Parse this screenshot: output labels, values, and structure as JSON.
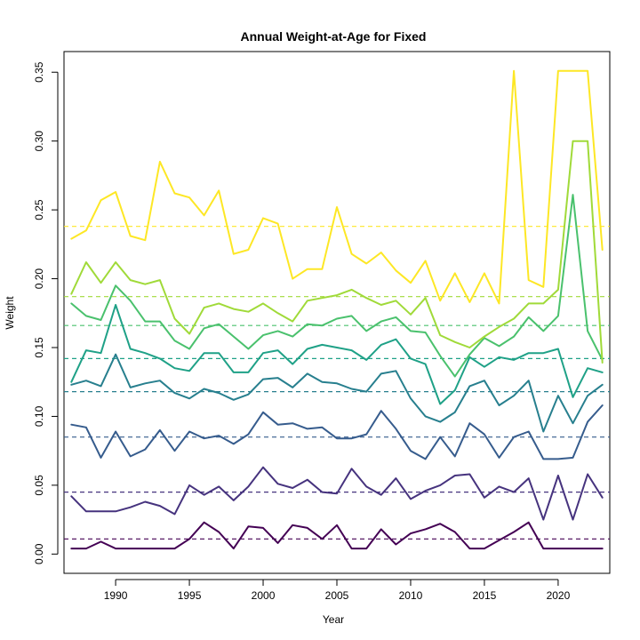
{
  "chart_data": {
    "type": "line",
    "title": "Annual Weight-at-Age for Fixed",
    "xlabel": "Year",
    "ylabel": "Weight",
    "xlim": [
      1986.5,
      2023.5
    ],
    "ylim": [
      -0.014,
      0.365
    ],
    "x_ticks": [
      1990,
      1995,
      2000,
      2005,
      2010,
      2015,
      2020
    ],
    "y_ticks": [
      0.0,
      0.05,
      0.1,
      0.15,
      0.2,
      0.25,
      0.3,
      0.35
    ],
    "y_tick_labels": [
      "0.00",
      "0.05",
      "0.10",
      "0.15",
      "0.20",
      "0.25",
      "0.30",
      "0.35"
    ],
    "grid": false,
    "legend": "none",
    "x": [
      1987,
      1988,
      1989,
      1990,
      1991,
      1992,
      1993,
      1994,
      1995,
      1996,
      1997,
      1998,
      1999,
      2000,
      2001,
      2002,
      2003,
      2004,
      2005,
      2006,
      2007,
      2008,
      2009,
      2010,
      2011,
      2012,
      2013,
      2014,
      2015,
      2016,
      2017,
      2018,
      2019,
      2020,
      2021,
      2022,
      2023
    ],
    "series": [
      {
        "color": "#440154",
        "mean": 0.011,
        "values": [
          0.004,
          0.004,
          0.009,
          0.004,
          0.004,
          0.004,
          0.004,
          0.004,
          0.011,
          0.023,
          0.016,
          0.004,
          0.02,
          0.019,
          0.008,
          0.021,
          0.019,
          0.011,
          0.021,
          0.004,
          0.004,
          0.018,
          0.007,
          0.015,
          0.018,
          0.022,
          0.016,
          0.004,
          0.004,
          0.01,
          0.016,
          0.023,
          0.004,
          0.004,
          0.004,
          0.004,
          0.004
        ]
      },
      {
        "color": "#46337e",
        "mean": 0.045,
        "values": [
          0.042,
          0.031,
          0.031,
          0.031,
          0.034,
          0.038,
          0.035,
          0.029,
          0.05,
          0.043,
          0.049,
          0.039,
          0.049,
          0.063,
          0.051,
          0.048,
          0.054,
          0.045,
          0.044,
          0.062,
          0.049,
          0.043,
          0.055,
          0.04,
          0.046,
          0.05,
          0.057,
          0.058,
          0.041,
          0.049,
          0.045,
          0.055,
          0.025,
          0.057,
          0.025,
          0.058,
          0.041
        ]
      },
      {
        "color": "#365c8d",
        "mean": 0.085,
        "values": [
          0.094,
          0.092,
          0.07,
          0.089,
          0.071,
          0.076,
          0.09,
          0.075,
          0.089,
          0.084,
          0.086,
          0.08,
          0.087,
          0.103,
          0.094,
          0.095,
          0.091,
          0.092,
          0.084,
          0.084,
          0.087,
          0.104,
          0.091,
          0.075,
          0.069,
          0.085,
          0.071,
          0.095,
          0.087,
          0.07,
          0.085,
          0.089,
          0.069,
          0.069,
          0.07,
          0.096,
          0.108
        ]
      },
      {
        "color": "#277f8e",
        "mean": 0.118,
        "values": [
          0.123,
          0.126,
          0.122,
          0.145,
          0.121,
          0.124,
          0.126,
          0.117,
          0.113,
          0.12,
          0.117,
          0.112,
          0.116,
          0.127,
          0.128,
          0.121,
          0.131,
          0.125,
          0.124,
          0.12,
          0.118,
          0.131,
          0.133,
          0.113,
          0.1,
          0.096,
          0.103,
          0.122,
          0.126,
          0.108,
          0.115,
          0.126,
          0.089,
          0.115,
          0.095,
          0.115,
          0.123
        ]
      },
      {
        "color": "#1fa187",
        "mean": 0.142,
        "values": [
          0.125,
          0.148,
          0.146,
          0.181,
          0.149,
          0.146,
          0.142,
          0.135,
          0.133,
          0.146,
          0.146,
          0.132,
          0.132,
          0.146,
          0.148,
          0.138,
          0.149,
          0.152,
          0.15,
          0.148,
          0.141,
          0.152,
          0.156,
          0.142,
          0.138,
          0.109,
          0.119,
          0.143,
          0.136,
          0.143,
          0.141,
          0.146,
          0.146,
          0.149,
          0.114,
          0.135,
          0.132
        ]
      },
      {
        "color": "#4ac16d",
        "mean": 0.166,
        "values": [
          0.182,
          0.173,
          0.17,
          0.195,
          0.184,
          0.169,
          0.169,
          0.155,
          0.149,
          0.164,
          0.167,
          0.158,
          0.149,
          0.159,
          0.162,
          0.158,
          0.167,
          0.166,
          0.171,
          0.173,
          0.162,
          0.169,
          0.172,
          0.162,
          0.161,
          0.144,
          0.129,
          0.145,
          0.157,
          0.151,
          0.158,
          0.172,
          0.162,
          0.173,
          0.261,
          0.162,
          0.141
        ]
      },
      {
        "color": "#a0da39",
        "mean": 0.187,
        "values": [
          0.189,
          0.212,
          0.197,
          0.212,
          0.199,
          0.196,
          0.199,
          0.171,
          0.16,
          0.179,
          0.182,
          0.178,
          0.176,
          0.182,
          0.175,
          0.169,
          0.184,
          0.186,
          0.188,
          0.192,
          0.186,
          0.181,
          0.184,
          0.174,
          0.186,
          0.159,
          0.154,
          0.15,
          0.158,
          0.165,
          0.171,
          0.182,
          0.182,
          0.192,
          0.3,
          0.3,
          0.139
        ]
      },
      {
        "color": "#fde725",
        "mean": 0.238,
        "values": [
          0.229,
          0.235,
          0.257,
          0.263,
          0.231,
          0.228,
          0.285,
          0.262,
          0.259,
          0.246,
          0.264,
          0.218,
          0.221,
          0.244,
          0.24,
          0.2,
          0.207,
          0.207,
          0.252,
          0.218,
          0.211,
          0.219,
          0.206,
          0.197,
          0.213,
          0.184,
          0.204,
          0.183,
          0.204,
          0.182,
          0.351,
          0.199,
          0.194,
          0.351,
          0.351,
          0.351,
          0.221
        ]
      }
    ]
  }
}
